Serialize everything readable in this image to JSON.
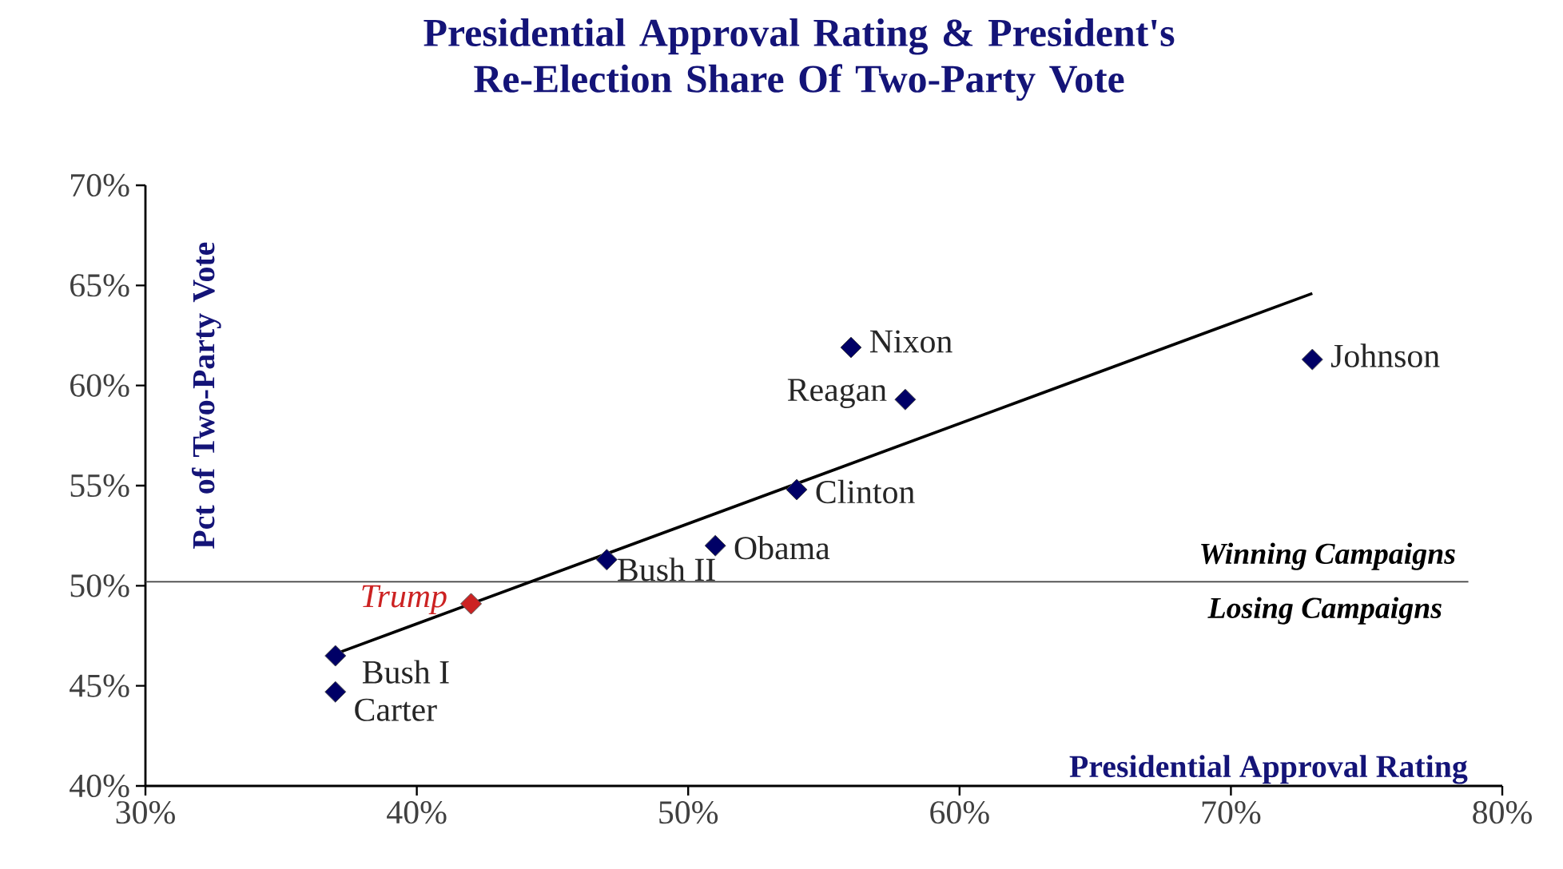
{
  "chart_data": {
    "type": "scatter",
    "title": "Presidential Approval Rating & President's Re-Election Share Of Two-Party Vote",
    "xlabel": "Presidential Approval Rating",
    "ylabel": "Pct of Two-Party Vote",
    "marker": "diamond",
    "grid": false,
    "legend": false,
    "xlim": [
      30,
      80
    ],
    "ylim": [
      40,
      70
    ],
    "xticks": [
      {
        "value": 30,
        "label": "30%"
      },
      {
        "value": 40,
        "label": "40%"
      },
      {
        "value": 50,
        "label": "50%"
      },
      {
        "value": 60,
        "label": "60%"
      },
      {
        "value": 70,
        "label": "70%"
      },
      {
        "value": 80,
        "label": "80%"
      }
    ],
    "yticks": [
      {
        "value": 40,
        "label": "40%"
      },
      {
        "value": 45,
        "label": "45%"
      },
      {
        "value": 50,
        "label": "50%"
      },
      {
        "value": 55,
        "label": "55%"
      },
      {
        "value": 60,
        "label": "60%"
      },
      {
        "value": 65,
        "label": "65%"
      },
      {
        "value": 70,
        "label": "70%"
      }
    ],
    "ref_lines": [
      {
        "axis": "y",
        "value": 50.2,
        "color": "#404040"
      }
    ],
    "annotations": [
      "Winning Campaigns",
      "Losing Campaigns"
    ],
    "series": [
      {
        "name": "Bush I",
        "color": "#000066",
        "x": [
          37
        ],
        "values": [
          46.5
        ]
      },
      {
        "name": "Carter",
        "color": "#000066",
        "x": [
          37
        ],
        "values": [
          44.7
        ]
      },
      {
        "name": "Trump",
        "color": "#cc2222",
        "x": [
          42
        ],
        "values": [
          49.1
        ]
      },
      {
        "name": "Bush II",
        "color": "#000066",
        "x": [
          47
        ],
        "values": [
          51.3
        ]
      },
      {
        "name": "Obama",
        "color": "#000066",
        "x": [
          51
        ],
        "values": [
          52.0
        ]
      },
      {
        "name": "Clinton",
        "color": "#000066",
        "x": [
          54
        ],
        "values": [
          54.8
        ]
      },
      {
        "name": "Nixon",
        "color": "#000066",
        "x": [
          56
        ],
        "values": [
          61.9
        ]
      },
      {
        "name": "Reagan",
        "color": "#000066",
        "x": [
          58
        ],
        "values": [
          59.3
        ]
      },
      {
        "name": "Johnson",
        "color": "#000066",
        "x": [
          73
        ],
        "values": [
          61.3
        ]
      },
      {
        "type": "line",
        "marker": "none",
        "color": "#000000",
        "x": [
          37,
          73
        ],
        "values": [
          46.6,
          64.6
        ]
      }
    ]
  }
}
